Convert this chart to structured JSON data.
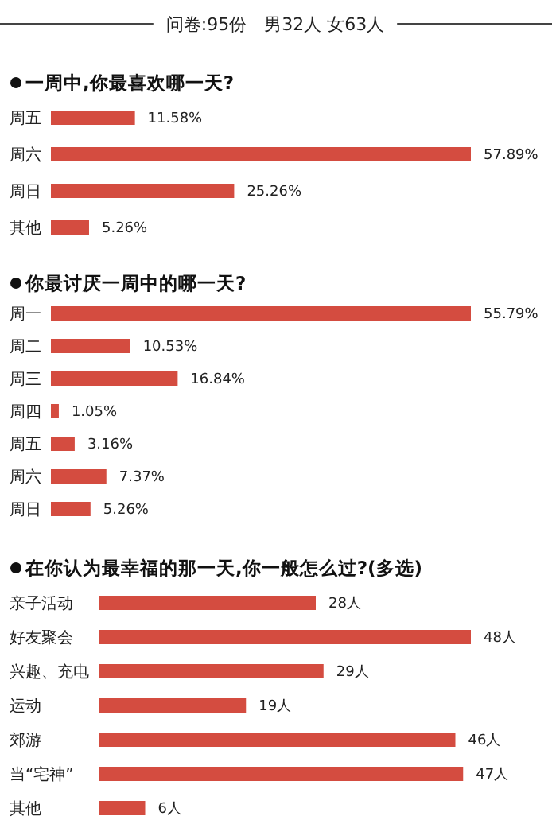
{
  "chart_data": [
    {
      "type": "bar",
      "orientation": "horizontal",
      "title": "一周中,你最喜欢哪一天?",
      "annotations": [
        "问卷:95份　男32人 女63人"
      ],
      "categories": [
        "周五",
        "周六",
        "周日",
        "其他"
      ],
      "values": [
        11.58,
        57.89,
        25.26,
        5.26
      ],
      "value_labels": [
        "11.58%",
        "57.89%",
        "25.26%",
        "5.26%"
      ],
      "color": "#d44c40"
    },
    {
      "type": "bar",
      "orientation": "horizontal",
      "title": "你最讨厌一周中的哪一天?",
      "categories": [
        "周一",
        "周二",
        "周三",
        "周四",
        "周五",
        "周六",
        "周日"
      ],
      "values": [
        55.79,
        10.53,
        16.84,
        1.05,
        3.16,
        7.37,
        5.26
      ],
      "value_labels": [
        "55.79%",
        "10.53%",
        "16.84%",
        "1.05%",
        "3.16%",
        "7.37%",
        "5.26%"
      ],
      "color": "#d44c40"
    },
    {
      "type": "bar",
      "orientation": "horizontal",
      "title": "在你认为最幸福的那一天,你一般怎么过?(多选)",
      "categories": [
        "亲子活动",
        "好友聚会",
        "兴趣、充电",
        "运动",
        "郊游",
        "当“宅神”",
        "其他"
      ],
      "values": [
        28,
        48,
        29,
        19,
        46,
        47,
        6
      ],
      "value_labels": [
        "28人",
        "48人",
        "29人",
        "19人",
        "46人",
        "47人",
        "6人"
      ],
      "color": "#d44c40"
    }
  ]
}
